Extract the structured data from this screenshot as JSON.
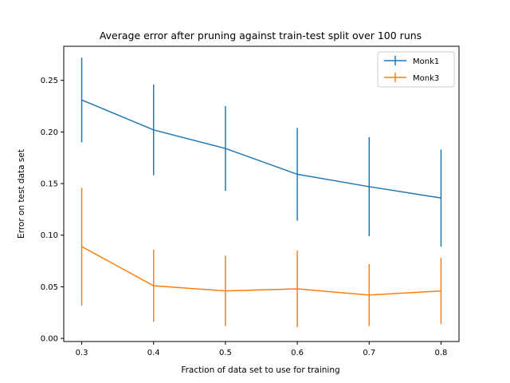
{
  "chart_data": {
    "type": "line",
    "title": "Average error after pruning against train-test split over 100 runs",
    "xlabel": "Fraction of data set to use for training",
    "ylabel": "Error on test data set",
    "x": [
      0.3,
      0.4,
      0.5,
      0.6,
      0.7,
      0.8
    ],
    "xticks": [
      0.3,
      0.4,
      0.5,
      0.6,
      0.7,
      0.8
    ],
    "xtick_labels": [
      "0.3",
      "0.4",
      "0.5",
      "0.6",
      "0.7",
      "0.8"
    ],
    "yticks": [
      0.0,
      0.05,
      0.1,
      0.15,
      0.2,
      0.25
    ],
    "ytick_labels": [
      "0.00",
      "0.05",
      "0.10",
      "0.15",
      "0.20",
      "0.25"
    ],
    "xlim": [
      0.275,
      0.825
    ],
    "ylim": [
      -0.003,
      0.283
    ],
    "grid": false,
    "legend_position": "top-right",
    "series": [
      {
        "name": "Monk1",
        "color": "#1f77b4",
        "values": [
          0.231,
          0.202,
          0.184,
          0.159,
          0.147,
          0.136
        ],
        "errors": [
          0.041,
          0.044,
          0.041,
          0.045,
          0.048,
          0.047
        ]
      },
      {
        "name": "Monk3",
        "color": "#ff7f0e",
        "values": [
          0.089,
          0.051,
          0.046,
          0.048,
          0.042,
          0.046
        ],
        "errors": [
          0.057,
          0.035,
          0.034,
          0.037,
          0.03,
          0.032
        ]
      }
    ]
  }
}
